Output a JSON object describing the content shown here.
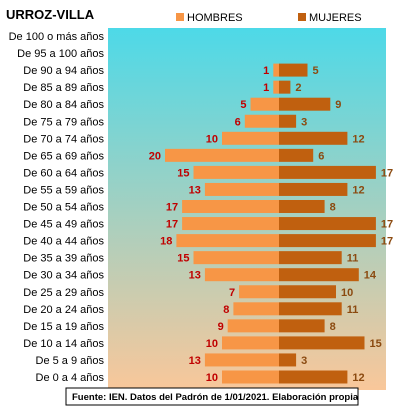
{
  "chart_data": {
    "type": "bar",
    "orientation": "horizontal",
    "title": "URROZ-VILLA",
    "categories": [
      "De 100 o más años",
      "De 95 a 100 años",
      "De 90 a 94 años",
      "De 85 a 89 años",
      "De 80 a 84 años",
      "De 75 a 79 años",
      "De 70 a 74 años",
      "De 65 a 69 años",
      "De 60 a 64 años",
      "De 55 a 59 años",
      "De 50 a 54 años",
      "De 45 a 49 años",
      "De 40 a 44 años",
      "De 35 a 39 años",
      "De 30 a 34 años",
      "De 25 a 29 años",
      "De 20 a 24 años",
      "De 15 a 19 años",
      "De 10 a 14 años",
      "De 5 a 9 años",
      "De 0 a 4 años"
    ],
    "series": [
      {
        "name": "HOMBRES",
        "color": "#F79646",
        "label_color": "#C00000",
        "values": [
          null,
          null,
          1,
          1,
          5,
          6,
          10,
          20,
          15,
          13,
          17,
          17,
          18,
          15,
          13,
          7,
          8,
          9,
          10,
          13,
          10
        ]
      },
      {
        "name": "MUJERES",
        "color": "#C0600F",
        "label_color": "#8B4A10",
        "values": [
          null,
          null,
          5,
          2,
          9,
          3,
          12,
          6,
          17,
          12,
          8,
          17,
          17,
          11,
          14,
          10,
          11,
          8,
          15,
          3,
          12
        ]
      }
    ],
    "legend_position": "top",
    "source": "Fuente: IEN. Datos del Padrón  de 1/01/2021. Elaboración propia",
    "background_gradient": [
      "#4DD9E8",
      "#F9C79A"
    ]
  }
}
